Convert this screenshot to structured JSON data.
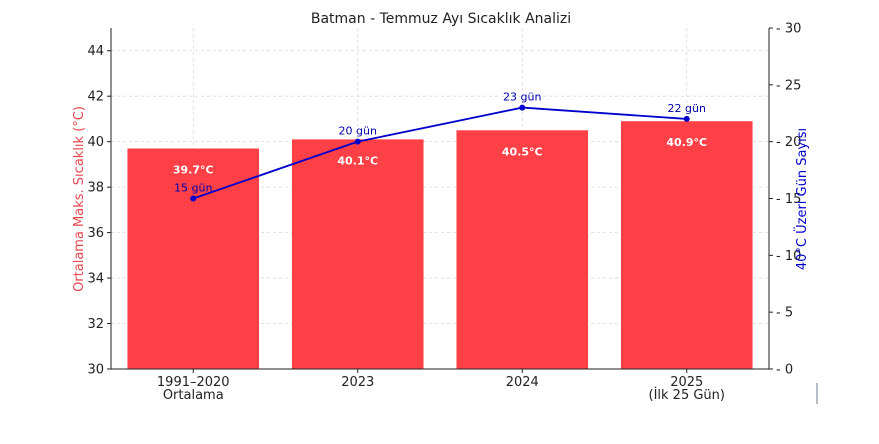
{
  "chart_data": {
    "type": "bar",
    "title": "Batman - Temmuz Ayı Sıcaklık Analizi",
    "categories": [
      [
        "1991–2020",
        "Ortalama"
      ],
      [
        "2023"
      ],
      [
        "2024"
      ],
      [
        "2025",
        "(İlk 25 Gün)"
      ]
    ],
    "series": [
      {
        "name": "Ortalama Maks. Sıcaklık (°C)",
        "type": "bar",
        "axis": "left",
        "values": [
          39.7,
          40.1,
          40.5,
          40.9
        ],
        "labels": [
          "39.7°C",
          "40.1°C",
          "40.5°C",
          "40.9°C"
        ],
        "color": "#ff4046"
      },
      {
        "name": "40°C Üzeri Gün Sayısı",
        "type": "line",
        "axis": "right",
        "values": [
          15,
          20,
          23,
          22
        ],
        "labels": [
          "15 gün",
          "20 gün",
          "23 gün",
          "22 gün"
        ],
        "color": "#0000cc"
      }
    ],
    "ylabel_left": "Ortalama Maks. Sıcaklık (°C)",
    "ylabel_right": "40°C Üzeri Gün Sayısı",
    "ylim_left": [
      30,
      45
    ],
    "yticks_left": [
      30,
      32,
      34,
      36,
      38,
      40,
      42,
      44
    ],
    "ylim_right": [
      0,
      30
    ],
    "yticks_right": [
      0,
      5,
      10,
      15,
      20,
      25,
      30
    ],
    "grid": true
  }
}
